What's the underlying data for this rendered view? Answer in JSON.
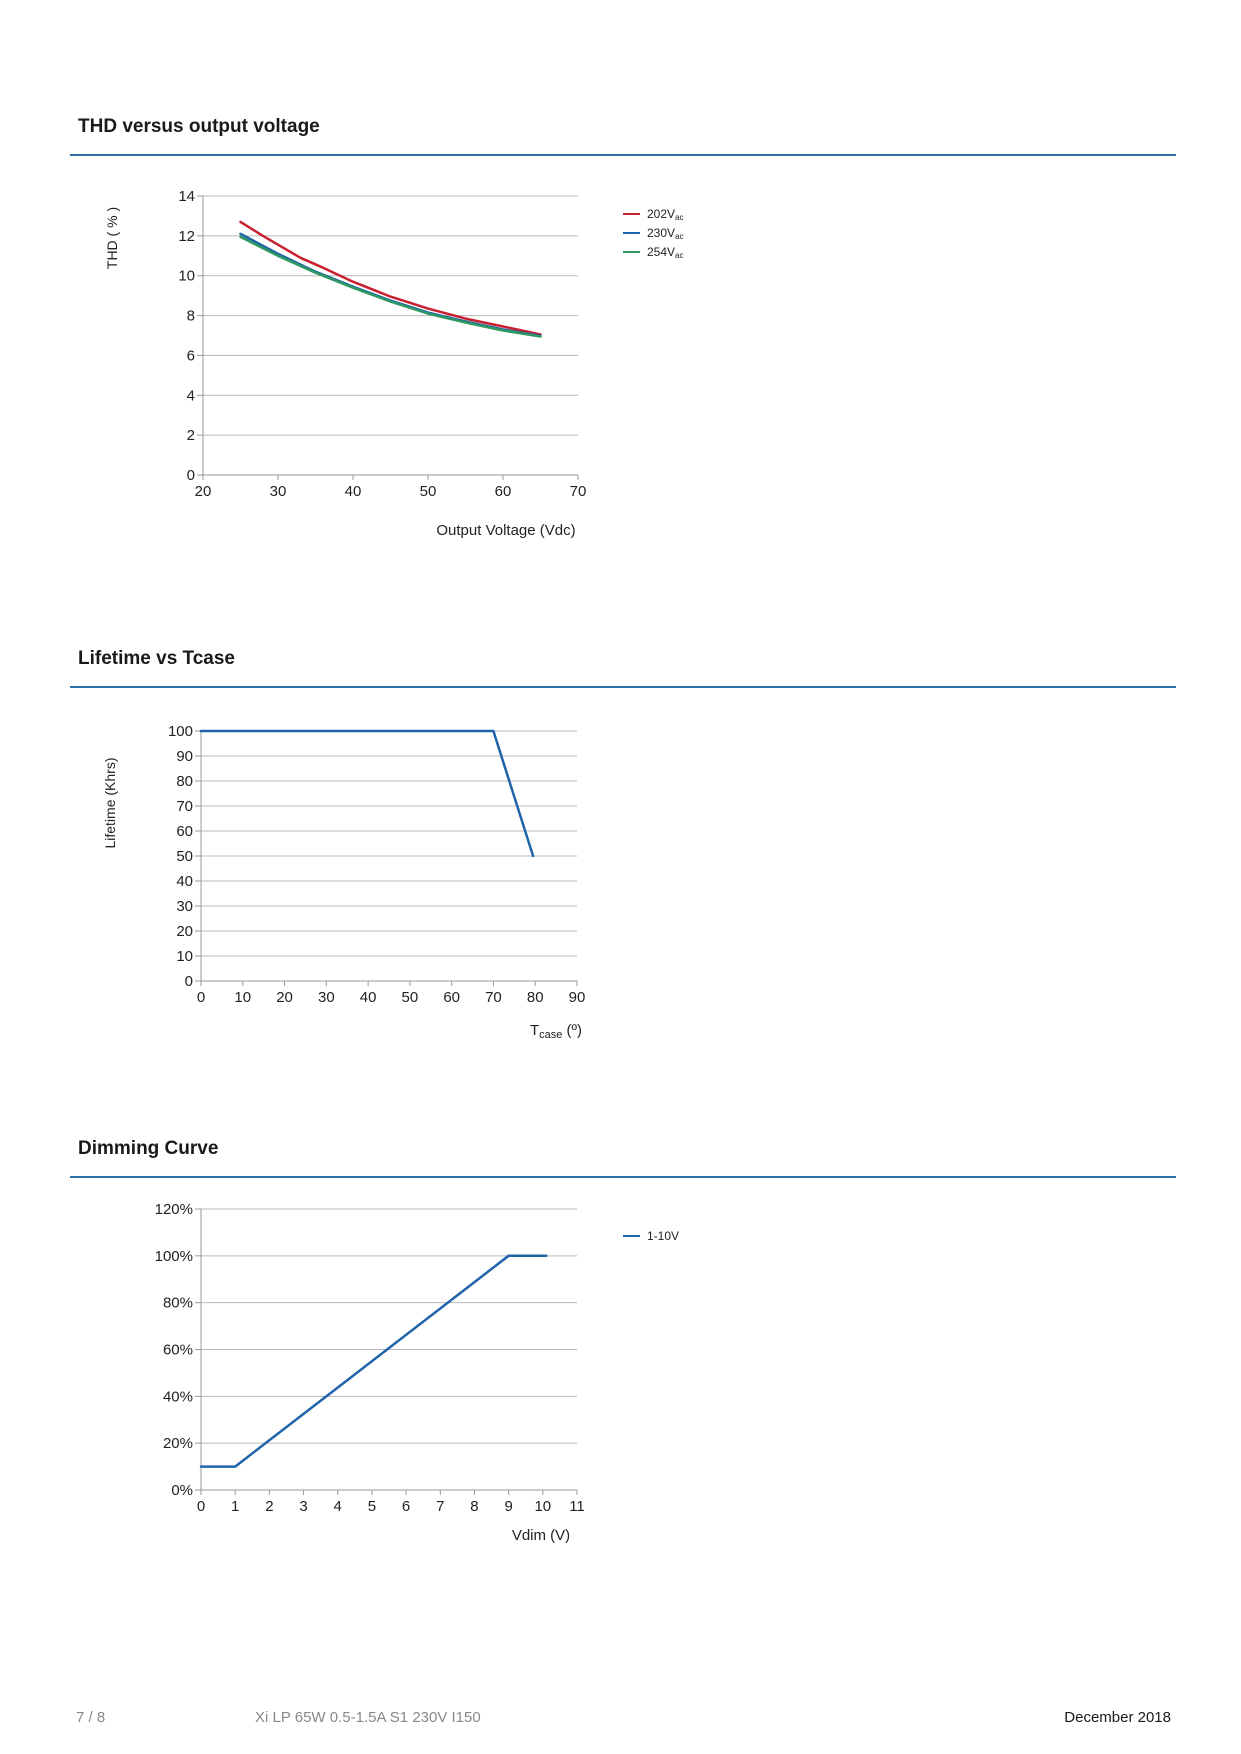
{
  "footer": {
    "page": "7 / 8",
    "product": "Xi LP 65W 0.5-1.5A S1 230V I150",
    "date": "December 2018"
  },
  "colors": {
    "rule": "#2f6fa8",
    "grid": "#b8b8b8",
    "axis": "#999999"
  },
  "chart_data": [
    {
      "type": "line",
      "title": "THD versus output voltage",
      "xlabel": "Output Voltage (Vdc)",
      "ylabel": "THD ( % )",
      "xlim": [
        20,
        70
      ],
      "ylim": [
        0,
        14
      ],
      "xticks": [
        "20",
        "30",
        "40",
        "50",
        "60",
        "70"
      ],
      "yticks": [
        "0",
        "2",
        "4",
        "6",
        "8",
        "10",
        "12",
        "14"
      ],
      "grid": true,
      "legend": "right",
      "series": [
        {
          "name": "202V",
          "sub": "ac",
          "color": "#c8202f",
          "x": [
            25,
            28,
            33,
            36,
            40,
            45,
            50,
            55,
            60,
            65
          ],
          "y": [
            12.7,
            12.0,
            10.9,
            10.4,
            9.7,
            8.95,
            8.35,
            7.85,
            7.45,
            7.05
          ]
        },
        {
          "name": "230V",
          "sub": "ac",
          "color": "#1f63a8",
          "x": [
            25,
            30,
            35,
            40,
            45,
            50,
            55,
            60,
            65
          ],
          "y": [
            12.1,
            11.1,
            10.2,
            9.45,
            8.75,
            8.15,
            7.7,
            7.3,
            6.98
          ]
        },
        {
          "name": "254V",
          "sub": "ac",
          "color": "#2e9a62",
          "x": [
            25,
            30,
            35,
            40,
            45,
            50,
            55,
            60,
            65
          ],
          "y": [
            11.95,
            11.0,
            10.15,
            9.4,
            8.7,
            8.1,
            7.65,
            7.25,
            6.95
          ]
        }
      ]
    },
    {
      "type": "line",
      "title": "Lifetime vs Tcase",
      "xlabel": "T",
      "xlabel_sub": "case",
      "xlabel_unit": " (º)",
      "ylabel": "Lifetime (Khrs)",
      "xlim": [
        0,
        90
      ],
      "ylim": [
        0,
        100
      ],
      "xticks": [
        "0",
        "10",
        "20",
        "30",
        "40",
        "50",
        "60",
        "70",
        "80",
        "90"
      ],
      "yticks": [
        "0",
        "10",
        "20",
        "30",
        "40",
        "50",
        "60",
        "70",
        "80",
        "90",
        "100"
      ],
      "grid": true,
      "series": [
        {
          "color": "#1f63a8",
          "x": [
            0,
            70,
            79.5
          ],
          "y": [
            100,
            100,
            50
          ]
        }
      ]
    },
    {
      "type": "line",
      "title": "Dimming Curve",
      "xlabel": "Vdim (V)",
      "ylabel": "",
      "xlim": [
        0,
        11
      ],
      "ylim": [
        0,
        120
      ],
      "xticks": [
        "0",
        "1",
        "2",
        "3",
        "4",
        "5",
        "6",
        "7",
        "8",
        "9",
        "10",
        "11"
      ],
      "yticks": [
        "0%",
        "20%",
        "40%",
        "60%",
        "80%",
        "100%",
        "120%"
      ],
      "grid": true,
      "legend": "right",
      "series": [
        {
          "name": "1-10V",
          "color": "#1f63a8",
          "x": [
            0,
            1,
            9,
            10.1
          ],
          "y": [
            10,
            10,
            100,
            100
          ]
        }
      ]
    }
  ]
}
